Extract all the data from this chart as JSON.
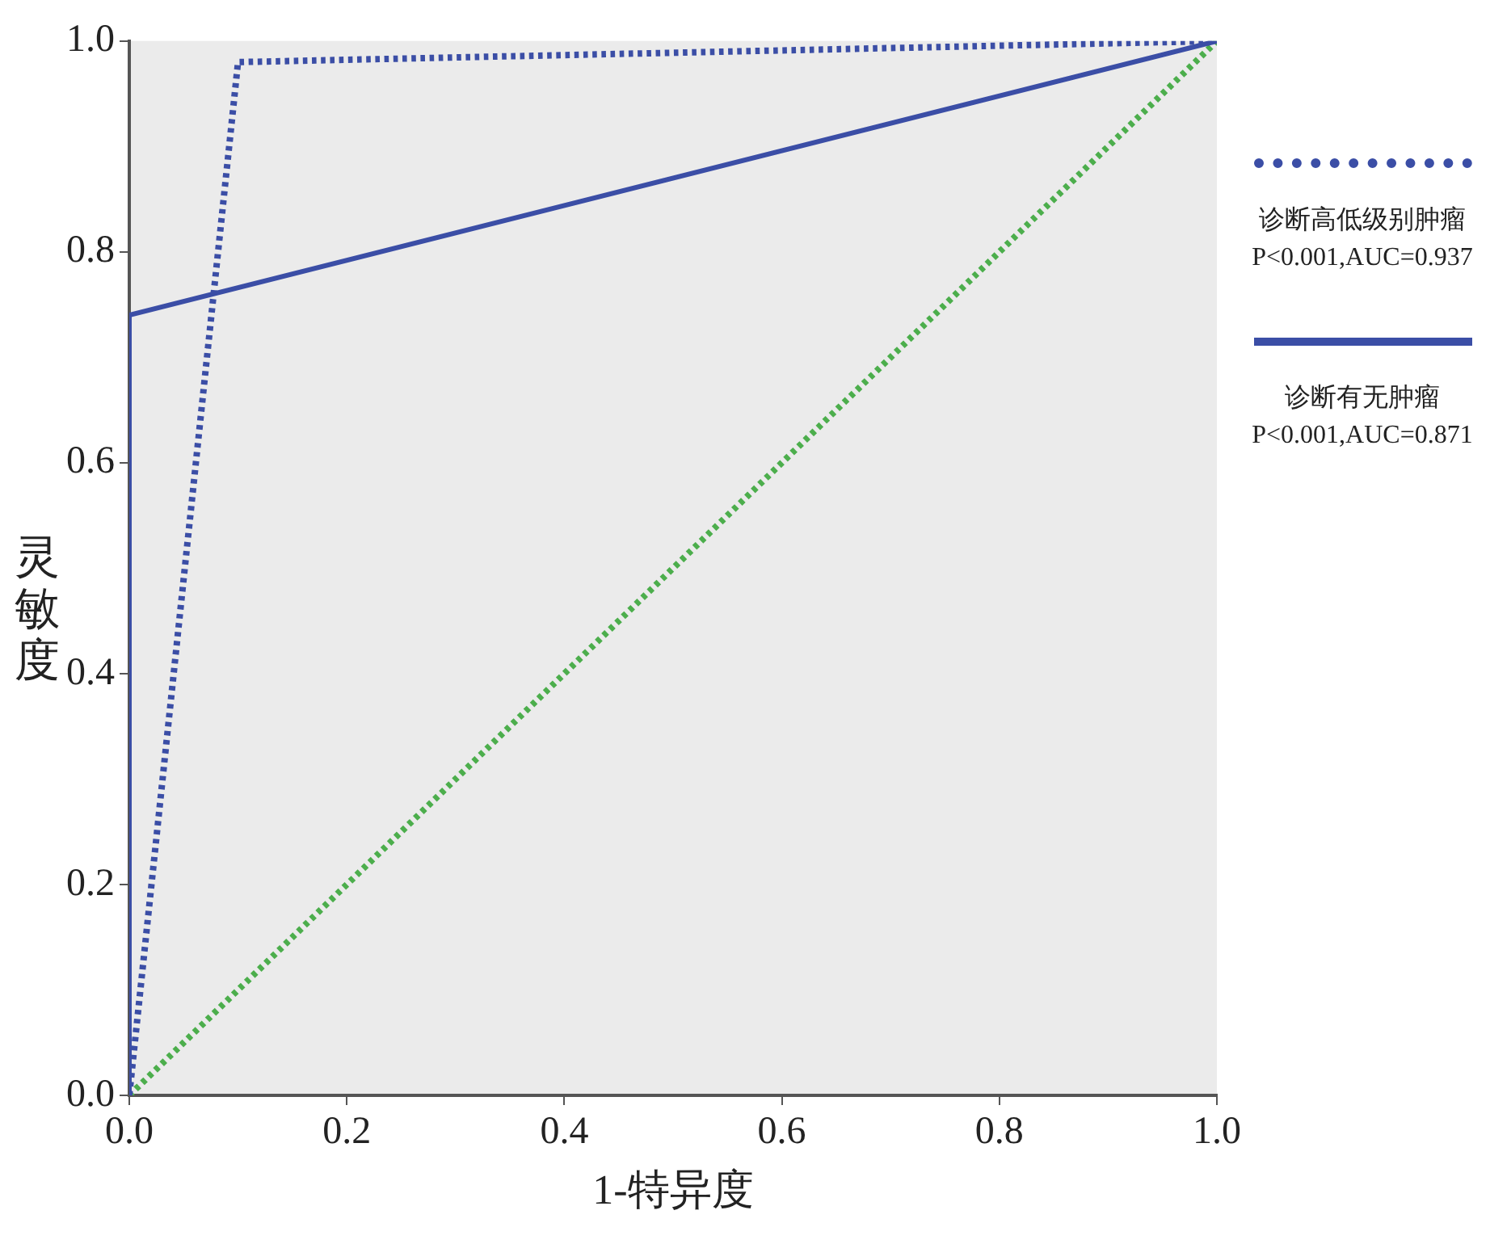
{
  "chart_data": {
    "type": "line",
    "xlabel": "1-特异度",
    "ylabel": "灵敏度",
    "xlim": [
      0,
      1
    ],
    "ylim": [
      0,
      1
    ],
    "xticks": [
      {
        "value": 0,
        "label": "0.0"
      },
      {
        "value": 0.2,
        "label": "0.2"
      },
      {
        "value": 0.4,
        "label": "0.4"
      },
      {
        "value": 0.6,
        "label": "0.6"
      },
      {
        "value": 0.8,
        "label": "0.8"
      },
      {
        "value": 1,
        "label": "1.0"
      }
    ],
    "yticks": [
      {
        "value": 0,
        "label": "0.0"
      },
      {
        "value": 0.2,
        "label": "0.2"
      },
      {
        "value": 0.4,
        "label": "0.4"
      },
      {
        "value": 0.6,
        "label": "0.6"
      },
      {
        "value": 0.8,
        "label": "0.8"
      },
      {
        "value": 1,
        "label": "1.0"
      }
    ],
    "legend": "right",
    "marker": "none",
    "series": [
      {
        "name": "诊断高低级别肿瘤",
        "color": "#3b4ea6",
        "line_style": "dotted",
        "x": [
          0,
          0.1,
          1
        ],
        "values": [
          0,
          0.98,
          1
        ]
      },
      {
        "name": "诊断有无肿瘤",
        "color": "#3b4ea6",
        "line_style": "solid",
        "x": [
          0,
          0,
          1
        ],
        "values": [
          0,
          0.74,
          1
        ]
      },
      {
        "color": "#4cae4c",
        "line_style": "dotted",
        "x": [
          0,
          1
        ],
        "values": [
          0,
          1
        ]
      }
    ],
    "annotations": [
      "P<0.001,AUC=0.937",
      "P<0.001,AUC=0.871"
    ]
  }
}
